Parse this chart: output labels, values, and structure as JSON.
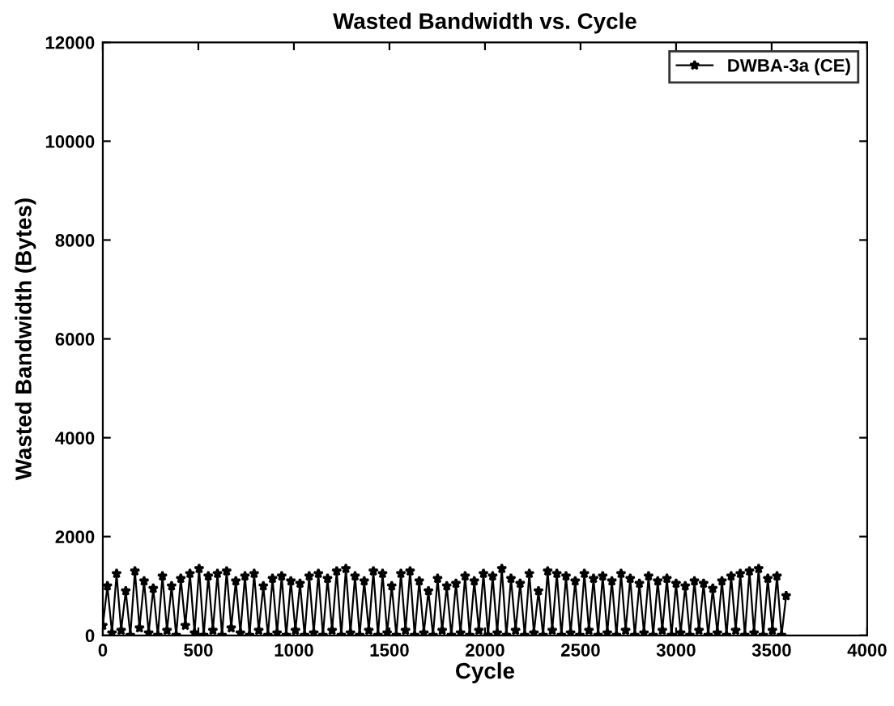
{
  "chart_data": {
    "type": "line",
    "title": "Wasted Bandwidth vs. Cycle",
    "xlabel": "Cycle",
    "ylabel": "Wasted Bandwidth (Bytes)",
    "xlim": [
      0,
      4000
    ],
    "ylim": [
      0,
      12000
    ],
    "xticks": [
      0,
      500,
      1000,
      1500,
      2000,
      2500,
      3000,
      3500,
      4000
    ],
    "yticks": [
      0,
      2000,
      4000,
      6000,
      8000,
      10000,
      12000
    ],
    "legend": "top right",
    "marker": "star",
    "line_style": "solid",
    "grid": false,
    "series": [
      {
        "name": "DWBA-3a (CE)",
        "color": "#000000",
        "x": [
          0,
          24,
          48,
          72,
          96,
          120,
          144,
          168,
          192,
          216,
          240,
          264,
          288,
          312,
          336,
          360,
          384,
          408,
          432,
          456,
          480,
          504,
          528,
          552,
          576,
          600,
          624,
          648,
          672,
          696,
          720,
          744,
          768,
          792,
          816,
          840,
          864,
          888,
          912,
          936,
          960,
          984,
          1008,
          1032,
          1056,
          1080,
          1104,
          1128,
          1152,
          1176,
          1200,
          1224,
          1248,
          1272,
          1296,
          1320,
          1344,
          1368,
          1392,
          1416,
          1440,
          1464,
          1488,
          1512,
          1536,
          1560,
          1584,
          1608,
          1632,
          1656,
          1680,
          1704,
          1728,
          1752,
          1776,
          1800,
          1824,
          1848,
          1872,
          1896,
          1920,
          1944,
          1968,
          1992,
          2016,
          2040,
          2064,
          2088,
          2112,
          2136,
          2160,
          2184,
          2208,
          2232,
          2256,
          2280,
          2304,
          2328,
          2352,
          2376,
          2400,
          2424,
          2448,
          2472,
          2496,
          2520,
          2544,
          2568,
          2592,
          2616,
          2640,
          2664,
          2688,
          2712,
          2736,
          2760,
          2784,
          2808,
          2832,
          2856,
          2880,
          2904,
          2928,
          2952,
          2976,
          3000,
          3024,
          3048,
          3072,
          3096,
          3120,
          3144,
          3168,
          3192,
          3216,
          3240,
          3264,
          3288,
          3312,
          3336,
          3360,
          3384,
          3408,
          3432,
          3456,
          3480,
          3504,
          3528,
          3552,
          3576
        ],
        "values": [
          200,
          1000,
          50,
          1250,
          100,
          900,
          0,
          1300,
          150,
          1100,
          50,
          950,
          0,
          1200,
          100,
          1000,
          0,
          1150,
          200,
          1250,
          50,
          1350,
          0,
          1200,
          100,
          1250,
          0,
          1300,
          150,
          1100,
          50,
          1200,
          0,
          1250,
          100,
          1000,
          0,
          1150,
          50,
          1200,
          0,
          1100,
          100,
          1050,
          0,
          1200,
          50,
          1250,
          0,
          1150,
          100,
          1300,
          0,
          1350,
          50,
          1200,
          0,
          1100,
          100,
          1300,
          0,
          1250,
          50,
          1000,
          0,
          1250,
          100,
          1300,
          0,
          1100,
          50,
          900,
          0,
          1150,
          100,
          1000,
          0,
          1050,
          50,
          1200,
          0,
          1100,
          100,
          1250,
          0,
          1200,
          50,
          1350,
          0,
          1150,
          100,
          1050,
          0,
          1250,
          50,
          900,
          0,
          1300,
          100,
          1250,
          0,
          1200,
          50,
          1100,
          0,
          1250,
          100,
          1150,
          0,
          1200,
          50,
          1100,
          0,
          1250,
          100,
          1150,
          0,
          1050,
          50,
          1200,
          0,
          1100,
          100,
          1150,
          0,
          1050,
          50,
          1000,
          0,
          1100,
          100,
          1050,
          0,
          950,
          50,
          1100,
          0,
          1200,
          100,
          1250,
          0,
          1300,
          50,
          1350,
          0,
          1150,
          100,
          1200,
          0,
          800
        ]
      }
    ]
  }
}
